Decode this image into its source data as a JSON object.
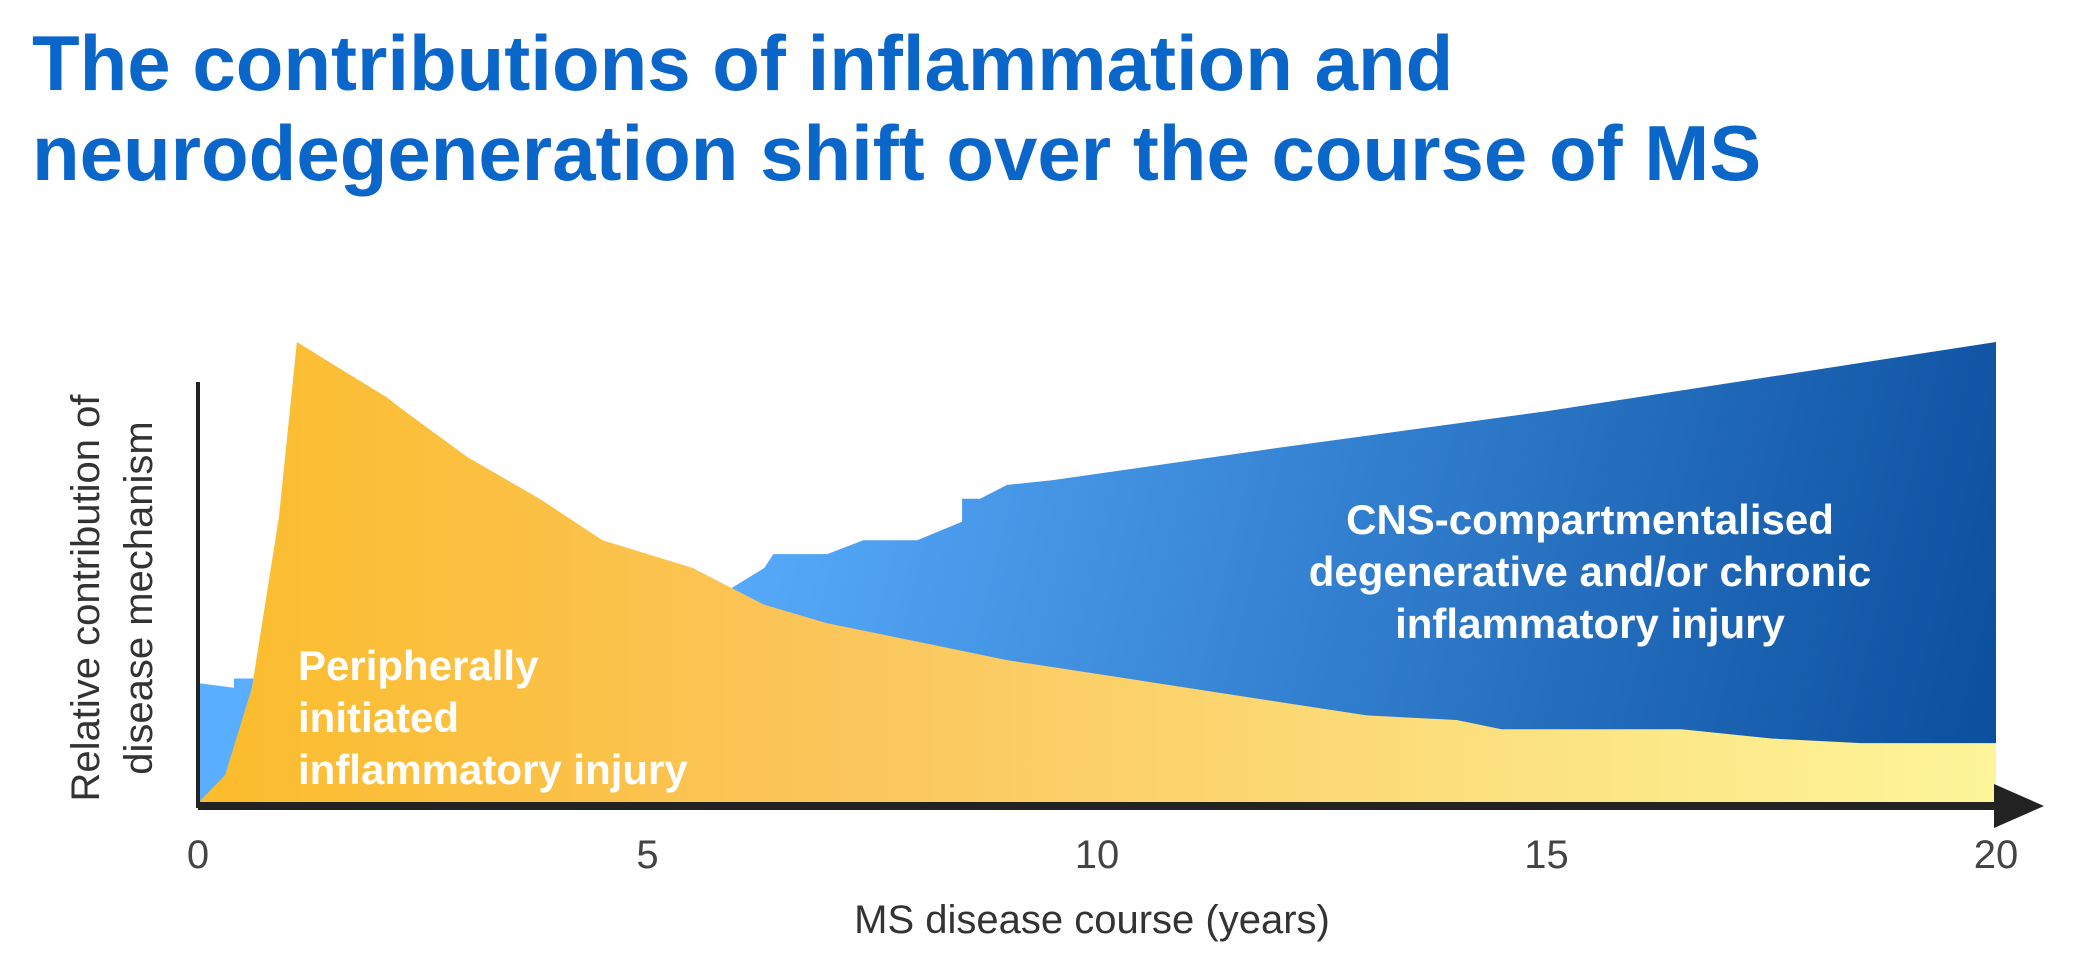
{
  "title": {
    "line1": "The contributions of inflammation and",
    "line2": "neurodegeneration shift over the course of MS"
  },
  "chart_data": {
    "type": "area",
    "title": "The contributions of inflammation and neurodegeneration shift over the course of MS",
    "xlabel": "MS disease course (years)",
    "ylabel_lines": [
      "Relative contribution of",
      "disease mechanism"
    ],
    "xlim": [
      0,
      20
    ],
    "ylim": [
      0,
      100
    ],
    "xticks": [
      "0",
      "5",
      "10",
      "15",
      "20"
    ],
    "grid": false,
    "series": [
      {
        "name": "CNS-compartmentalised degenerative and/or chronic inflammatory injury",
        "color_start": "#5aaeff",
        "color_end": "#0b4f9e",
        "x": [
          0,
          0.4,
          0.4,
          0.8,
          1.5,
          3,
          4.5,
          5.8,
          6.3,
          6.4,
          7,
          7.4,
          8,
          8.5,
          8.5,
          8.7,
          9,
          9.5,
          12,
          15,
          18,
          20
        ],
        "y": [
          26,
          25,
          27,
          27,
          26,
          26,
          30,
          45,
          51,
          54,
          54,
          57,
          57,
          61,
          66,
          66,
          69,
          70,
          77,
          85,
          94,
          100
        ]
      },
      {
        "name": "Peripherally initiated inflammatory injury",
        "color_start": "#fbbc2c",
        "color_end": "#fdf59a",
        "x": [
          0,
          0.3,
          0.6,
          0.9,
          1.1,
          1.6,
          2.1,
          2.3,
          3,
          3.8,
          4.5,
          5.5,
          6.3,
          7,
          8,
          9,
          10,
          11,
          12,
          13,
          14,
          14.5,
          15,
          16,
          16.5,
          17.5,
          18.5,
          20
        ],
        "y": [
          0,
          6,
          25,
          62,
          100,
          94,
          88,
          85,
          75,
          66,
          57,
          51,
          43,
          39,
          35,
          31,
          28,
          25,
          22,
          19,
          18,
          16,
          16,
          16,
          16,
          14,
          13,
          13
        ]
      }
    ],
    "annotations": [
      {
        "label": "peripheral",
        "lines": [
          "Peripherally",
          "initiated",
          "inflammatory injury"
        ]
      },
      {
        "label": "cns",
        "lines": [
          "CNS-compartmentalised",
          "degenerative and/or chronic",
          "inflammatory injury"
        ]
      }
    ]
  }
}
